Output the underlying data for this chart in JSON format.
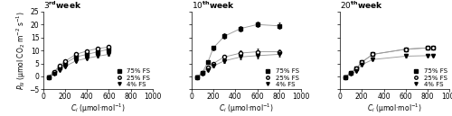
{
  "panels": [
    {
      "title_num": "3",
      "title_sup": "rd",
      "ci_75": [
        50,
        100,
        150,
        200,
        300,
        400,
        500,
        600
      ],
      "pn_75": [
        -0.3,
        1.5,
        3.5,
        5.0,
        7.5,
        8.5,
        9.5,
        10.5
      ],
      "err_75": [
        0.3,
        0.4,
        0.4,
        0.5,
        0.5,
        0.6,
        0.7,
        0.7
      ],
      "ci_25": [
        50,
        100,
        150,
        200,
        300,
        400,
        500,
        600
      ],
      "pn_25": [
        -0.2,
        1.8,
        4.0,
        5.8,
        8.5,
        9.8,
        10.8,
        11.3
      ],
      "err_25": [
        0.3,
        0.4,
        0.5,
        0.5,
        0.6,
        0.7,
        0.8,
        0.8
      ],
      "ci_4": [
        50,
        100,
        150,
        200,
        300,
        400,
        500,
        600
      ],
      "pn_4": [
        -0.5,
        1.0,
        2.5,
        3.8,
        6.0,
        7.0,
        7.8,
        8.5
      ],
      "err_4": [
        0.3,
        0.3,
        0.4,
        0.5,
        0.5,
        0.6,
        0.6,
        0.6
      ]
    },
    {
      "title_num": "10",
      "title_sup": "th",
      "ci_75": [
        50,
        100,
        150,
        200,
        300,
        450,
        600,
        800
      ],
      "pn_75": [
        -0.5,
        1.5,
        5.5,
        11.0,
        15.5,
        18.5,
        20.0,
        19.5
      ],
      "err_75": [
        0.3,
        0.5,
        0.7,
        0.9,
        1.0,
        1.0,
        1.0,
        1.2
      ],
      "ci_25": [
        50,
        100,
        150,
        200,
        300,
        450,
        600,
        800
      ],
      "pn_25": [
        -0.3,
        1.5,
        3.5,
        5.0,
        7.5,
        9.0,
        9.5,
        9.5
      ],
      "err_25": [
        0.3,
        0.4,
        0.6,
        0.7,
        0.9,
        1.0,
        1.1,
        1.0
      ],
      "ci_4": [
        50,
        100,
        150,
        200,
        300,
        450,
        600,
        800
      ],
      "pn_4": [
        -0.5,
        1.0,
        2.5,
        4.0,
        6.0,
        7.5,
        8.0,
        8.5
      ],
      "err_4": [
        0.3,
        0.4,
        0.5,
        0.6,
        0.8,
        0.9,
        1.0,
        1.0
      ]
    },
    {
      "title_num": "20",
      "title_sup": "th",
      "ci_75": [
        50,
        100,
        150,
        200,
        300,
        600,
        800,
        850
      ],
      "pn_75": [
        -0.3,
        1.5,
        3.0,
        5.5,
        8.5,
        10.5,
        11.0,
        11.0
      ],
      "err_75": [
        0.2,
        0.3,
        0.3,
        0.4,
        0.4,
        0.4,
        0.4,
        0.4
      ],
      "ci_25": [
        50,
        100,
        150,
        200,
        300,
        600,
        800,
        850
      ],
      "pn_25": [
        -0.3,
        1.5,
        3.0,
        5.5,
        8.5,
        10.5,
        11.0,
        11.0
      ],
      "err_25": [
        0.2,
        0.3,
        0.3,
        0.4,
        0.4,
        0.4,
        0.4,
        0.4
      ],
      "ci_4": [
        50,
        100,
        150,
        200,
        300,
        600,
        800,
        850
      ],
      "pn_4": [
        -0.5,
        1.0,
        2.0,
        4.5,
        6.5,
        7.8,
        8.0,
        8.0
      ],
      "err_4": [
        0.2,
        0.3,
        0.3,
        0.4,
        0.4,
        0.4,
        0.4,
        0.4
      ]
    }
  ],
  "ylabel": "$P_N$ (μmol CO$_2$ m$^{-2}$ s$^{-1}$)",
  "xlabel": "$C_i$ (μmol·mol$^{-1}$)",
  "ylim": [
    -5,
    25
  ],
  "yticks": [
    -5,
    0,
    5,
    10,
    15,
    20,
    25
  ],
  "xlim": [
    0,
    1000
  ],
  "xticks": [
    0,
    200,
    400,
    600,
    800,
    1000
  ],
  "linecolor": "#999999",
  "fontsize_title": 6.5,
  "fontsize_tick": 5.5,
  "fontsize_label": 5.5,
  "fontsize_legend": 5.0
}
